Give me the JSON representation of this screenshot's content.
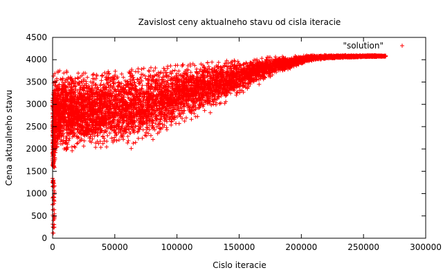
{
  "chart_data": {
    "type": "scatter",
    "title": "Zavislost ceny aktualneho stavu od cisla iteracie",
    "xlabel": "Cislo iteracie",
    "ylabel": "Cena aktualneho stavu",
    "xlim": [
      0,
      300000
    ],
    "ylim": [
      0,
      4500
    ],
    "xticks": [
      0,
      50000,
      100000,
      150000,
      200000,
      250000,
      300000
    ],
    "yticks": [
      0,
      500,
      1000,
      1500,
      2000,
      2500,
      3000,
      3500,
      4000,
      4500
    ],
    "grid": false,
    "legend": "top-right",
    "marker": "+",
    "series": [
      {
        "name": "\"solution\"",
        "color": "#ff0000",
        "envelope": {
          "x": [
            0,
            2000,
            5000,
            10000,
            20000,
            30000,
            50000,
            70000,
            90000,
            110000,
            130000,
            150000,
            170000,
            190000,
            200000,
            210000,
            220000,
            240000,
            260000,
            268000
          ],
          "y_min": [
            80,
            900,
            1300,
            1350,
            1400,
            1450,
            1550,
            1650,
            1950,
            2300,
            2600,
            3000,
            3400,
            3700,
            3850,
            3950,
            4000,
            4030,
            4050,
            4060
          ],
          "y_max": [
            3600,
            3700,
            3750,
            3750,
            3700,
            3700,
            3750,
            3800,
            3850,
            3900,
            3950,
            4000,
            4050,
            4080,
            4090,
            4100,
            4100,
            4100,
            4100,
            4090
          ]
        }
      }
    ]
  }
}
